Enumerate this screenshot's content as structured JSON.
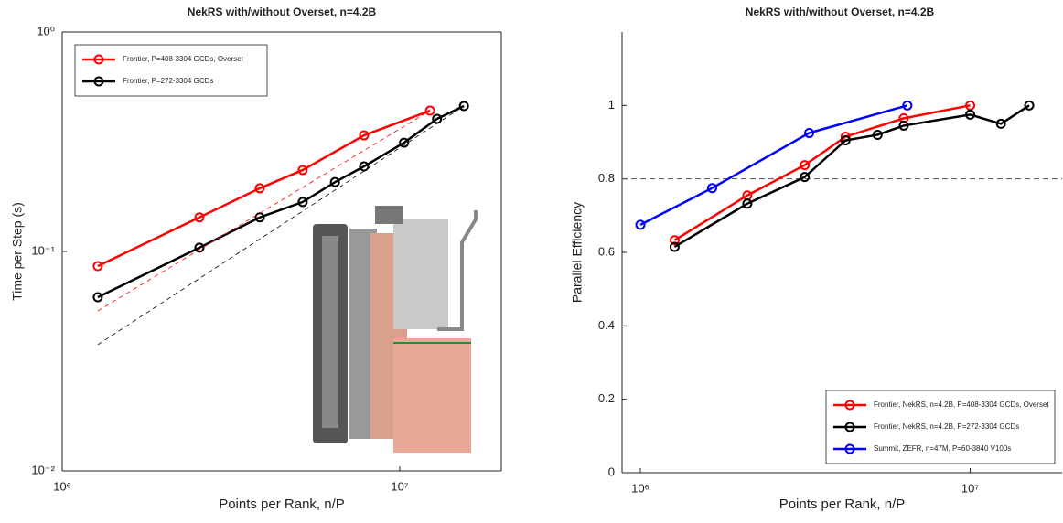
{
  "chart_data": [
    {
      "type": "line",
      "title": "NekRS with/without Overset, n=4.2B",
      "x_label": "Points per Rank, n/P",
      "y_label": "Time per Step (s)",
      "xscale": "log",
      "yscale": "log",
      "xlim": [
        1000000,
        20000000
      ],
      "ylim": [
        0.01,
        1
      ],
      "xticks": [
        {
          "value": 1000000,
          "label": "10⁶"
        },
        {
          "value": 10000000,
          "label": "10⁷"
        }
      ],
      "yticks": [
        {
          "value": 0.01,
          "label": "10⁻²"
        },
        {
          "value": 0.1,
          "label": "10⁻¹"
        },
        {
          "value": 1,
          "label": "10⁰"
        }
      ],
      "box": true,
      "legend": "upper left",
      "series": [
        {
          "name": "Frontier, P=408-3304 GCDs, Overset",
          "color": "#ff0000",
          "x": [
            1275000,
            2550000,
            3850000,
            5160000,
            7840000,
            12300000
          ],
          "values": [
            0.0858,
            0.143,
            0.194,
            0.235,
            0.338,
            0.438
          ]
        },
        {
          "name": "Frontier, P=272-3304 GCDs",
          "color": "#000000",
          "x": [
            1275000,
            2550000,
            3850000,
            5160000,
            6430000,
            7840000,
            10300000,
            12900000,
            15500000
          ],
          "values": [
            0.0619,
            0.104,
            0.143,
            0.168,
            0.207,
            0.244,
            0.313,
            0.402,
            0.46
          ]
        },
        {
          "color": "#ff0000",
          "dashed": true,
          "x": [
            1275000,
            12300000
          ],
          "values": [
            0.0536,
            0.438
          ]
        },
        {
          "color": "#000000",
          "dashed": true,
          "x": [
            1275000,
            15500000
          ],
          "values": [
            0.0376,
            0.46
          ]
        }
      ]
    },
    {
      "type": "line",
      "title": "NekRS with/without Overset, n=4.2B",
      "x_label": "Points per Rank, n/P",
      "y_label": "Parallel Efficiency",
      "xscale": "log",
      "xlim": [
        880000,
        19000000
      ],
      "ylim": [
        0,
        1.2
      ],
      "xticks": [
        {
          "value": 1000000,
          "label": "10⁶"
        },
        {
          "value": 10000000,
          "label": "10⁷"
        }
      ],
      "yticks": [
        0,
        0.2,
        0.4,
        0.6,
        0.8,
        1
      ],
      "box": false,
      "legend": "lower right",
      "reference_line": 0.8,
      "series": [
        {
          "name": "Frontier, NekRS, n=4.2B, P=408-3304 GCDs, Overset",
          "color": "#ff0000",
          "x": [
            1270000,
            2110000,
            3150000,
            4190000,
            6290000,
            10000000
          ],
          "values": [
            0.633,
            0.755,
            0.8375,
            0.915,
            0.965,
            1
          ]
        },
        {
          "name": "Frontier, NekRS, n=4.2B, P=272-3304 GCDs",
          "color": "#000000",
          "x": [
            1270000,
            2110000,
            3150000,
            4190000,
            5240000,
            6290000,
            10000000,
            12400000,
            15100000
          ],
          "values": [
            0.615,
            0.7325,
            0.805,
            0.905,
            0.92,
            0.945,
            0.975,
            0.95,
            1
          ]
        },
        {
          "name": "Summit, ZEFR, n=47M, P=60-3840 V100s",
          "color": "#0000ff",
          "x": [
            1000000,
            1650000,
            3250000,
            6450000
          ],
          "values": [
            0.675,
            0.775,
            0.925,
            1
          ]
        }
      ]
    }
  ]
}
